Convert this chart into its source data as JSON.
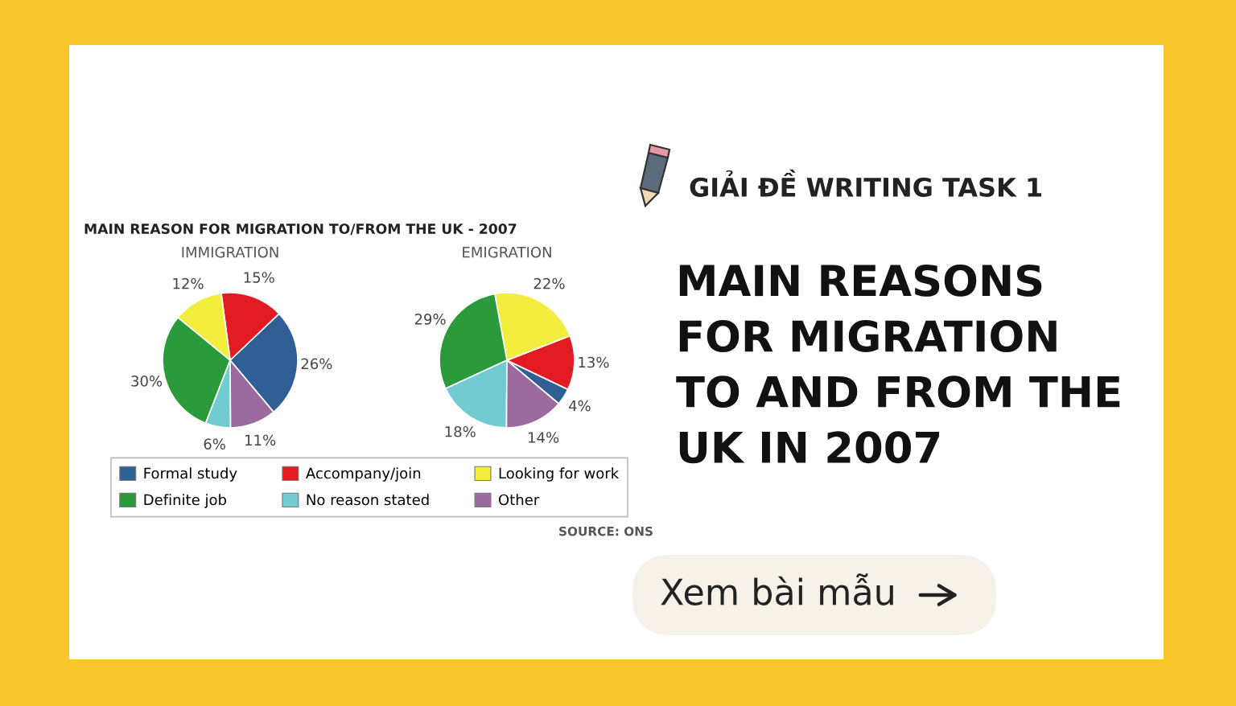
{
  "chart_data": [
    {
      "type": "pie",
      "title": "IMMIGRATION",
      "categories": [
        "Formal study",
        "Accompany/join",
        "Looking for work",
        "Definite job",
        "No reason stated",
        "Other"
      ],
      "values": [
        26,
        15,
        12,
        30,
        6,
        11
      ],
      "colors": [
        "#2f5f94",
        "#e31c23",
        "#f3ee3d",
        "#2b9a3b",
        "#71cbd0",
        "#9b6b9f"
      ],
      "value_labels": [
        "26%",
        "15%",
        "12%",
        "30%",
        "6%",
        "11%"
      ],
      "legend": "bottom",
      "annotations": [
        "MAIN REASON FOR MIGRATION TO/FROM THE UK - 2007",
        "SOURCE: ONS"
      ]
    },
    {
      "type": "pie",
      "title": "EMIGRATION",
      "categories": [
        null,
        null,
        null,
        null,
        null,
        null
      ],
      "values": [
        4,
        13,
        22,
        29,
        18,
        14
      ],
      "colors": [
        "#2f5f94",
        "#e31c23",
        "#f3ee3d",
        "#2b9a3b",
        "#71cbd0",
        "#9b6b9f"
      ],
      "value_labels": [
        "4%",
        "13%",
        "22%",
        "29%",
        "18%",
        "14%"
      ]
    },
    {
      "type": "other",
      "subtitle": "GIẢI ĐỀ WRITING TASK 1",
      "title": "MAIN REASONS FOR MIGRATION TO AND FROM THE UK IN 2007",
      "annotations": [
        "Xem bài mẫu"
      ]
    }
  ]
}
